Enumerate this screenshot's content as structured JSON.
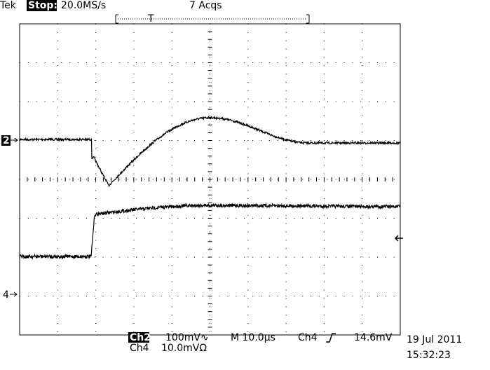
{
  "header": {
    "brand": "Tek",
    "status": "Stop:",
    "sample_rate": "20.0MS/s",
    "acquisitions": "7 Acqs",
    "trigger_position": "T"
  },
  "markers": {
    "ch2": "2",
    "ch4": "4"
  },
  "footer": {
    "ch2_label": "Ch2",
    "ch2_scale": "100mV∿",
    "timebase": "M 10.0µs",
    "trigger_source": "Ch4",
    "trigger_level": "14.6mV",
    "ch4_label": "Ch4",
    "ch4_scale": "10.0mVΩ",
    "date": "19 Jul 2011",
    "time": "15:32:23"
  }
}
